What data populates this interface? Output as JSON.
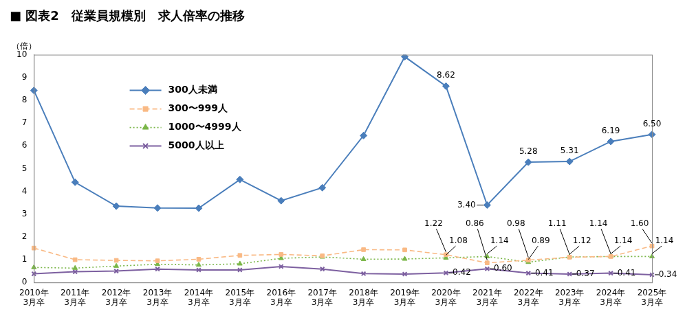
{
  "chart_data": {
    "type": "line",
    "title": "■ 図表2　従業員規模別　求人倍率の推移",
    "ylabel": "（倍）",
    "categories": [
      "2010年\n3月卒",
      "2011年\n3月卒",
      "2012年\n3月卒",
      "2013年\n3月卒",
      "2014年\n3月卒",
      "2015年\n3月卒",
      "2016年\n3月卒",
      "2017年\n3月卒",
      "2018年\n3月卒",
      "2019年\n3月卒",
      "2020年\n3月卒",
      "2021年\n3月卒",
      "2022年\n3月卒",
      "2023年\n3月卒",
      "2024年\n3月卒",
      "2025年\n3月卒"
    ],
    "series": [
      {
        "name": "300人未満",
        "color": "#4a7ebb",
        "marker": "diamond",
        "line_style": "solid",
        "values": [
          8.43,
          4.4,
          3.35,
          3.27,
          3.26,
          4.52,
          3.59,
          4.16,
          6.45,
          9.91,
          8.62,
          3.4,
          5.28,
          5.31,
          6.19,
          6.5
        ],
        "value_labels": [
          null,
          null,
          null,
          null,
          null,
          null,
          null,
          null,
          null,
          null,
          "8.62",
          "3.40",
          "5.28",
          "5.31",
          "6.19",
          "6.50"
        ]
      },
      {
        "name": "300〜999人",
        "color": "#f9b984",
        "marker": "square",
        "line_style": "dashed",
        "values": [
          1.51,
          1.0,
          0.97,
          0.95,
          1.02,
          1.19,
          1.23,
          1.17,
          1.44,
          1.43,
          1.22,
          0.86,
          0.98,
          1.11,
          1.14,
          1.6
        ],
        "value_labels": [
          null,
          null,
          null,
          null,
          null,
          null,
          null,
          null,
          null,
          null,
          "1.22",
          "0.86",
          "0.98",
          "1.11",
          "1.14",
          "1.60"
        ]
      },
      {
        "name": "1000〜4999人",
        "color": "#7ab648",
        "marker": "triangle",
        "line_style": "dotted",
        "values": [
          0.66,
          0.63,
          0.72,
          0.8,
          0.77,
          0.82,
          1.06,
          1.12,
          1.02,
          1.03,
          1.08,
          1.14,
          0.89,
          1.12,
          1.14,
          1.14
        ],
        "value_labels": [
          null,
          null,
          null,
          null,
          null,
          null,
          null,
          null,
          null,
          null,
          "1.08",
          "1.14",
          "0.89",
          "1.12",
          "1.14",
          "1.14"
        ]
      },
      {
        "name": "5000人以上",
        "color": "#7d60a0",
        "marker": "x",
        "line_style": "solid",
        "values": [
          0.38,
          0.47,
          0.5,
          0.59,
          0.55,
          0.55,
          0.7,
          0.59,
          0.39,
          0.37,
          0.42,
          0.6,
          0.41,
          0.37,
          0.41,
          0.34
        ],
        "value_labels": [
          null,
          null,
          null,
          null,
          null,
          null,
          null,
          null,
          null,
          null,
          "0.42",
          "0.60",
          "0.41",
          "0.37",
          "0.41",
          "0.34"
        ]
      }
    ],
    "ylim": [
      0,
      10
    ],
    "yticks": [
      0,
      1,
      2,
      3,
      4,
      5,
      6,
      7,
      8,
      9,
      10
    ],
    "grid": false,
    "legend": "upper left",
    "data_labels": true
  }
}
